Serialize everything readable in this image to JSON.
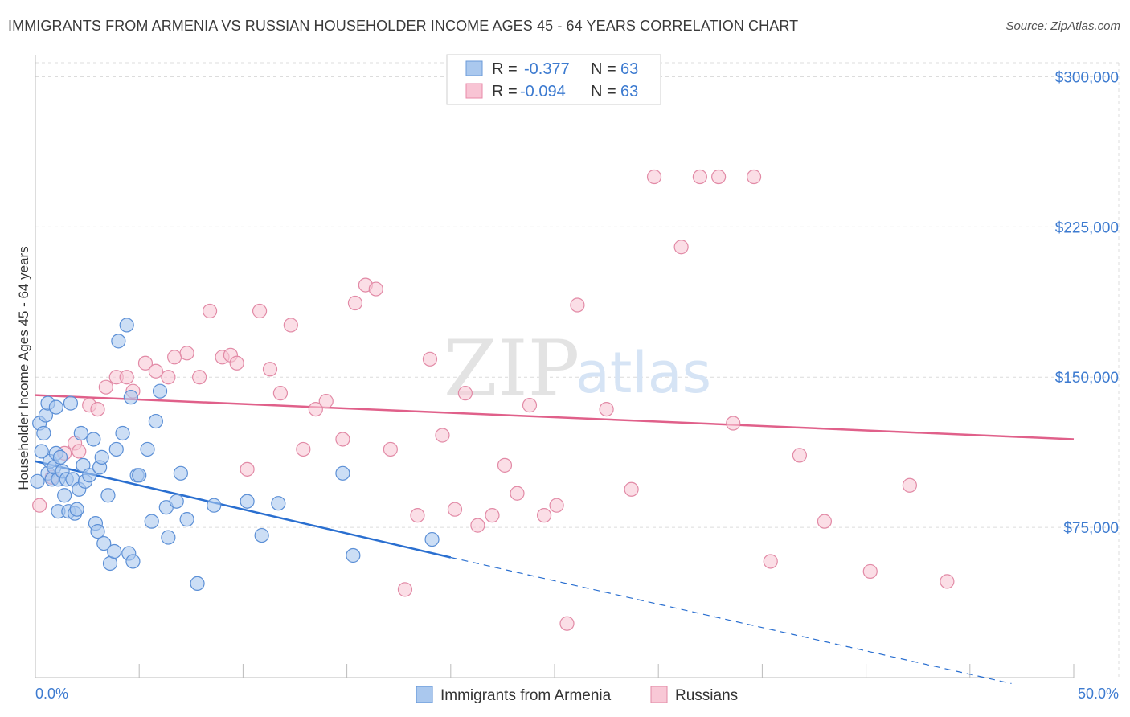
{
  "title": "IMMIGRANTS FROM ARMENIA VS RUSSIAN HOUSEHOLDER INCOME AGES 45 - 64 YEARS CORRELATION CHART",
  "source": "Source: ZipAtlas.com",
  "watermark": {
    "zip": "ZIP",
    "atlas": "atlas"
  },
  "legend_top": [
    {
      "r_label": "R =",
      "r_value": "-0.377",
      "n_label": "N =",
      "n_value": "63",
      "color": "#aac8ee",
      "border": "#6a9ad8"
    },
    {
      "r_label": "R =",
      "r_value": "-0.094",
      "n_label": "N =",
      "n_value": "63",
      "color": "#f8c4d4",
      "border": "#e88aa8"
    }
  ],
  "colors": {
    "blue_fill": "#aac8ee",
    "blue_stroke": "#5b8fd6",
    "blue_line": "#2a6fd0",
    "pink_fill": "#f8c8d6",
    "pink_stroke": "#e28aa6",
    "pink_line": "#e0608a",
    "grid": "#dcdcdc",
    "tick_text": "#3d7bd0"
  },
  "chart_data": {
    "type": "scatter",
    "title": "IMMIGRANTS FROM ARMENIA VS RUSSIAN HOUSEHOLDER INCOME AGES 45 - 64 YEARS CORRELATION CHART",
    "xlabel": "",
    "ylabel": "Householder Income Ages 45 - 64 years",
    "xlim": [
      0,
      50
    ],
    "ylim": [
      0,
      307000
    ],
    "x_tick_labels": [
      "0.0%",
      "50.0%"
    ],
    "y_ticks": [
      75000,
      150000,
      225000,
      300000
    ],
    "y_tick_labels": [
      "$75,000",
      "$150,000",
      "$225,000",
      "$300,000"
    ],
    "grid": true,
    "legend_position": "bottom",
    "series": [
      {
        "name": "Immigrants from Armenia",
        "color": "#aac8ee",
        "points": [
          [
            0.1,
            98000
          ],
          [
            0.2,
            127000
          ],
          [
            0.3,
            113000
          ],
          [
            0.4,
            122000
          ],
          [
            0.5,
            131000
          ],
          [
            0.6,
            137000
          ],
          [
            0.6,
            102000
          ],
          [
            0.7,
            108000
          ],
          [
            0.8,
            99000
          ],
          [
            0.9,
            105000
          ],
          [
            1.0,
            112000
          ],
          [
            1.0,
            135000
          ],
          [
            1.1,
            99000
          ],
          [
            1.1,
            83000
          ],
          [
            1.2,
            110000
          ],
          [
            1.3,
            103000
          ],
          [
            1.4,
            91000
          ],
          [
            1.5,
            99000
          ],
          [
            1.6,
            83000
          ],
          [
            1.7,
            137000
          ],
          [
            1.8,
            99000
          ],
          [
            1.9,
            82000
          ],
          [
            2.0,
            84000
          ],
          [
            2.1,
            94000
          ],
          [
            2.2,
            122000
          ],
          [
            2.3,
            106000
          ],
          [
            2.4,
            98000
          ],
          [
            2.6,
            101000
          ],
          [
            2.8,
            119000
          ],
          [
            2.9,
            77000
          ],
          [
            3.0,
            73000
          ],
          [
            3.1,
            105000
          ],
          [
            3.2,
            110000
          ],
          [
            3.3,
            67000
          ],
          [
            3.5,
            91000
          ],
          [
            3.6,
            57000
          ],
          [
            3.8,
            63000
          ],
          [
            3.9,
            114000
          ],
          [
            4.0,
            168000
          ],
          [
            4.2,
            122000
          ],
          [
            4.4,
            176000
          ],
          [
            4.5,
            62000
          ],
          [
            4.6,
            140000
          ],
          [
            4.7,
            58000
          ],
          [
            4.9,
            101000
          ],
          [
            5.0,
            101000
          ],
          [
            5.4,
            114000
          ],
          [
            5.6,
            78000
          ],
          [
            5.8,
            128000
          ],
          [
            6.0,
            143000
          ],
          [
            6.3,
            85000
          ],
          [
            6.4,
            70000
          ],
          [
            6.8,
            88000
          ],
          [
            7.0,
            102000
          ],
          [
            7.3,
            79000
          ],
          [
            7.8,
            47000
          ],
          [
            8.6,
            86000
          ],
          [
            10.2,
            88000
          ],
          [
            10.9,
            71000
          ],
          [
            11.7,
            87000
          ],
          [
            14.8,
            102000
          ],
          [
            15.3,
            61000
          ],
          [
            19.1,
            69000
          ]
        ]
      },
      {
        "name": "Russians",
        "color": "#f8c8d6",
        "points": [
          [
            0.2,
            86000
          ],
          [
            0.8,
            100000
          ],
          [
            1.4,
            112000
          ],
          [
            1.9,
            117000
          ],
          [
            2.1,
            113000
          ],
          [
            2.6,
            136000
          ],
          [
            3.0,
            134000
          ],
          [
            3.4,
            145000
          ],
          [
            3.9,
            150000
          ],
          [
            4.4,
            150000
          ],
          [
            4.7,
            143000
          ],
          [
            5.3,
            157000
          ],
          [
            5.8,
            153000
          ],
          [
            6.4,
            150000
          ],
          [
            6.7,
            160000
          ],
          [
            7.3,
            162000
          ],
          [
            7.9,
            150000
          ],
          [
            8.4,
            183000
          ],
          [
            9.0,
            160000
          ],
          [
            9.4,
            161000
          ],
          [
            9.7,
            157000
          ],
          [
            10.2,
            104000
          ],
          [
            10.8,
            183000
          ],
          [
            11.3,
            154000
          ],
          [
            11.8,
            142000
          ],
          [
            12.3,
            176000
          ],
          [
            12.9,
            114000
          ],
          [
            13.5,
            134000
          ],
          [
            14.0,
            138000
          ],
          [
            14.8,
            119000
          ],
          [
            15.4,
            187000
          ],
          [
            15.9,
            196000
          ],
          [
            16.4,
            194000
          ],
          [
            17.1,
            114000
          ],
          [
            17.8,
            44000
          ],
          [
            18.4,
            81000
          ],
          [
            19.0,
            159000
          ],
          [
            19.6,
            121000
          ],
          [
            20.2,
            84000
          ],
          [
            20.7,
            142000
          ],
          [
            21.3,
            76000
          ],
          [
            22.0,
            81000
          ],
          [
            22.6,
            106000
          ],
          [
            23.2,
            92000
          ],
          [
            23.8,
            136000
          ],
          [
            24.5,
            81000
          ],
          [
            25.1,
            86000
          ],
          [
            25.6,
            27000
          ],
          [
            26.1,
            186000
          ],
          [
            27.5,
            134000
          ],
          [
            28.7,
            94000
          ],
          [
            29.8,
            250000
          ],
          [
            31.1,
            215000
          ],
          [
            32.0,
            250000
          ],
          [
            32.9,
            250000
          ],
          [
            33.6,
            127000
          ],
          [
            34.6,
            250000
          ],
          [
            35.4,
            58000
          ],
          [
            36.8,
            111000
          ],
          [
            38.0,
            78000
          ],
          [
            40.2,
            53000
          ],
          [
            42.1,
            96000
          ],
          [
            43.9,
            48000
          ]
        ]
      }
    ],
    "trend_lines": [
      {
        "series": "Immigrants from Armenia",
        "x": [
          0,
          20
        ],
        "y": [
          108000,
          60000
        ],
        "dashed_extension": {
          "x": [
            20,
            47
          ],
          "y": [
            60000,
            -3000
          ]
        }
      },
      {
        "series": "Russians",
        "x": [
          0,
          50
        ],
        "y": [
          141000,
          119000
        ]
      }
    ]
  },
  "bottom_legend": [
    {
      "label": "Immigrants from Armenia"
    },
    {
      "label": "Russians"
    }
  ]
}
